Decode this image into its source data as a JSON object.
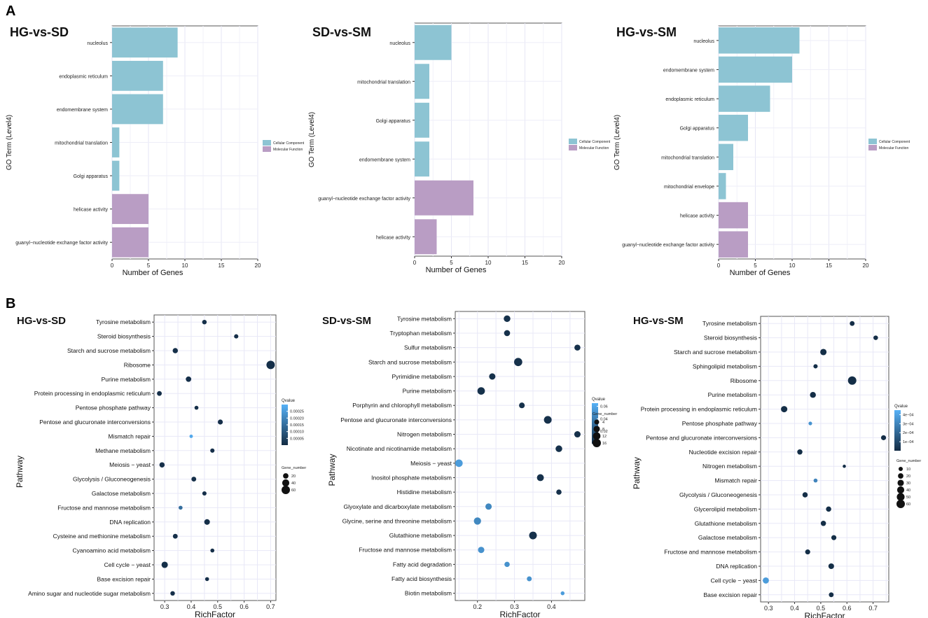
{
  "panel_labels": [
    "A",
    "B"
  ],
  "chart_data": [
    {
      "type": "bar",
      "orientation": "horizontal",
      "title": "HG-vs-SD",
      "xlabel": "Number of Genes",
      "ylabel": "GO Term (Level4)",
      "xlim": [
        0,
        20
      ],
      "xticks": [
        0,
        5,
        10,
        15,
        20
      ],
      "categories": [
        "nucleolus",
        "endoplasmic reticulum",
        "endomembrane system",
        "mitochondrial translation",
        "Golgi apparatus",
        "helicase activity",
        "guanyl−nucleotide exchange factor activity"
      ],
      "values": [
        9,
        7,
        7,
        1,
        1,
        5,
        5
      ],
      "groups": [
        "Cellular Component",
        "Cellular Component",
        "Cellular Component",
        "Cellular Component",
        "Cellular Component",
        "Molecular Function",
        "Molecular Function"
      ],
      "legend": [
        {
          "name": "Cellular Component",
          "color": "#8dc4d3"
        },
        {
          "name": "Molecular Function",
          "color": "#b99dc4"
        }
      ]
    },
    {
      "type": "bar",
      "orientation": "horizontal",
      "title": "SD-vs-SM",
      "xlabel": "Number of Genes",
      "ylabel": "GO Term (Level4)",
      "xlim": [
        0,
        20
      ],
      "xticks": [
        0,
        5,
        10,
        15,
        20
      ],
      "categories": [
        "nucleolus",
        "mitochondrial translation",
        "Golgi apparatus",
        "endomembrane system",
        "guanyl−nucleotide exchange factor activity",
        "helicase activity"
      ],
      "values": [
        5,
        2,
        2,
        2,
        8,
        3
      ],
      "groups": [
        "Cellular Component",
        "Cellular Component",
        "Cellular Component",
        "Cellular Component",
        "Molecular Function",
        "Molecular Function"
      ],
      "legend": [
        {
          "name": "Cellular Component",
          "color": "#8dc4d3"
        },
        {
          "name": "Molecular Function",
          "color": "#b99dc4"
        }
      ]
    },
    {
      "type": "bar",
      "orientation": "horizontal",
      "title": "HG-vs-SM",
      "xlabel": "Number of Genes",
      "ylabel": "GO Term (Level4)",
      "xlim": [
        0,
        20
      ],
      "xticks": [
        0,
        5,
        10,
        15,
        20
      ],
      "categories": [
        "nucleolus",
        "endomembrane system",
        "endoplasmic reticulum",
        "Golgi apparatus",
        "mitochondrial translation",
        "mitochondrial envelope",
        "helicase activity",
        "guanyl−nucleotide exchange factor activity"
      ],
      "values": [
        11,
        10,
        7,
        4,
        2,
        1,
        4,
        4
      ],
      "groups": [
        "Cellular Component",
        "Cellular Component",
        "Cellular Component",
        "Cellular Component",
        "Cellular Component",
        "Cellular Component",
        "Molecular Function",
        "Molecular Function"
      ],
      "legend": [
        {
          "name": "Cellular Component",
          "color": "#8dc4d3"
        },
        {
          "name": "Molecular Function",
          "color": "#b99dc4"
        }
      ]
    },
    {
      "type": "scatter",
      "title": "HG-vs-SD",
      "xlabel": "RichFactor",
      "ylabel": "Pathway",
      "xlim": [
        0.26,
        0.72
      ],
      "xticks": [
        0.3,
        0.4,
        0.5,
        0.6,
        0.7
      ],
      "xtick_labels": [
        "0.3",
        "0.4",
        "0.5",
        "0.6",
        "0.7"
      ],
      "categories": [
        "Tyrosine metabolism",
        "Steroid biosynthesis",
        "Starch and sucrose metabolism",
        "Ribosome",
        "Purine metabolism",
        "Protein processing in endoplasmic reticulum",
        "Pentose phosphate pathway",
        "Pentose and glucuronate interconversions",
        "Mismatch repair",
        "Methane metabolism",
        "Meiosis − yeast",
        "Glycolysis / Gluconeogenesis",
        "Galactose metabolism",
        "Fructose and mannose metabolism",
        "DNA replication",
        "Cysteine and methionine metabolism",
        "Cyanoamino acid metabolism",
        "Cell cycle − yeast",
        "Base excision repair",
        "Amino sugar and nucleotide sugar metabolism"
      ],
      "x": [
        0.45,
        0.57,
        0.34,
        0.7,
        0.39,
        0.28,
        0.42,
        0.51,
        0.4,
        0.48,
        0.29,
        0.41,
        0.45,
        0.36,
        0.46,
        0.34,
        0.48,
        0.3,
        0.46,
        0.33
      ],
      "gene_number": [
        12,
        10,
        18,
        60,
        20,
        14,
        8,
        16,
        5,
        10,
        18,
        14,
        10,
        8,
        22,
        14,
        8,
        30,
        8,
        12
      ],
      "qvalue": [
        1e-05,
        1e-05,
        1e-05,
        1e-05,
        1e-05,
        1e-05,
        1e-05,
        1e-05,
        0.00028,
        1e-05,
        1e-05,
        1e-05,
        1e-05,
        0.00015,
        1e-05,
        1e-05,
        1e-05,
        1e-05,
        1e-05,
        1e-05
      ],
      "legend_qvalue": {
        "title": "Qvalue",
        "ticks": [
          0.00025,
          0.0002,
          0.00015,
          0.0001,
          5e-05
        ],
        "tick_labels": [
          "0.00025",
          "0.00020",
          "0.00015",
          "0.00010",
          "0.00005"
        ],
        "range": [
          0.0,
          0.0003
        ]
      },
      "legend_size": {
        "title": "Gene_number",
        "values": [
          20,
          40,
          60
        ],
        "labels": [
          "20",
          "40",
          "60"
        ]
      }
    },
    {
      "type": "scatter",
      "title": "SD-vs-SM",
      "xlabel": "RichFactor",
      "ylabel": "Pathway",
      "xlim": [
        0.14,
        0.49
      ],
      "xticks": [
        0.2,
        0.3,
        0.4
      ],
      "xtick_labels": [
        "0.2",
        "0.3",
        "0.4"
      ],
      "categories": [
        "Tyrosine metabolism",
        "Tryptophan metabolism",
        "Sulfur metabolism",
        "Starch and sucrose metabolism",
        "Pyrimidine metabolism",
        "Purine metabolism",
        "Porphyrin and chlorophyll metabolism",
        "Pentose and glucuronate interconversions",
        "Nitrogen metabolism",
        "Nicotinate and nicotinamide metabolism",
        "Meiosis − yeast",
        "Inositol phosphate metabolism",
        "Histidine metabolism",
        "Glyoxylate and dicarboxylate metabolism",
        "Glycine, serine and threonine metabolism",
        "Glutathione metabolism",
        "Fructose and mannose metabolism",
        "Fatty acid degradation",
        "Fatty acid biosynthesis",
        "Biotin metabolism"
      ],
      "x": [
        0.28,
        0.28,
        0.47,
        0.31,
        0.24,
        0.21,
        0.32,
        0.39,
        0.47,
        0.42,
        0.15,
        0.37,
        0.42,
        0.23,
        0.2,
        0.35,
        0.21,
        0.28,
        0.34,
        0.43
      ],
      "gene_number": [
        9,
        7,
        7,
        15,
        8,
        12,
        6,
        13,
        8,
        9,
        12,
        10,
        5,
        8,
        11,
        13,
        8,
        5,
        4,
        2
      ],
      "qvalue": [
        0.003,
        0.003,
        0.003,
        0.003,
        0.003,
        0.003,
        0.003,
        0.003,
        0.003,
        0.003,
        0.055,
        0.003,
        0.003,
        0.045,
        0.045,
        0.003,
        0.05,
        0.05,
        0.05,
        0.055
      ],
      "legend_qvalue": {
        "title": "Qvalue",
        "ticks": [
          0.06,
          0.04,
          0.02
        ],
        "tick_labels": [
          "0.06",
          "0.04",
          "0.02"
        ],
        "range": [
          0.0,
          0.065
        ]
      },
      "legend_size": {
        "title": "Gene_number",
        "values": [
          4,
          8,
          12,
          16
        ],
        "labels": [
          "4",
          "8",
          "12",
          "16"
        ]
      }
    },
    {
      "type": "scatter",
      "title": "HG-vs-SM",
      "xlabel": "RichFactor",
      "ylabel": "Pathway",
      "xlim": [
        0.27,
        0.76
      ],
      "xticks": [
        0.3,
        0.4,
        0.5,
        0.6,
        0.7
      ],
      "xtick_labels": [
        "0.3",
        "0.4",
        "0.5",
        "0.6",
        "0.7"
      ],
      "categories": [
        "Tyrosine metabolism",
        "Steroid biosynthesis",
        "Starch and sucrose metabolism",
        "Sphingolipid metabolism",
        "Ribosome",
        "Purine metabolism",
        "Protein processing in endoplasmic reticulum",
        "Pentose phosphate pathway",
        "Pentose and glucuronate interconversions",
        "Nucleotide excision repair",
        "Nitrogen metabolism",
        "Mismatch repair",
        "Glycolysis / Gluconeogenesis",
        "Glycerolipid metabolism",
        "Glutathione metabolism",
        "Galactose metabolism",
        "Fructose and mannose metabolism",
        "DNA replication",
        "Cell cycle − yeast",
        "Base excision repair"
      ],
      "x": [
        0.62,
        0.71,
        0.51,
        0.48,
        0.62,
        0.47,
        0.36,
        0.46,
        0.74,
        0.42,
        0.59,
        0.48,
        0.44,
        0.53,
        0.51,
        0.55,
        0.45,
        0.54,
        0.29,
        0.54
      ],
      "gene_number": [
        14,
        12,
        30,
        10,
        60,
        25,
        30,
        6,
        16,
        18,
        4,
        8,
        18,
        18,
        18,
        16,
        16,
        22,
        28,
        14
      ],
      "qvalue": [
        1e-05,
        1e-05,
        1e-05,
        1e-05,
        1e-05,
        1e-05,
        1e-05,
        0.00035,
        1e-05,
        1e-05,
        1e-05,
        0.0003,
        1e-05,
        1e-05,
        1e-05,
        1e-05,
        1e-05,
        1e-05,
        0.00038,
        1e-05
      ],
      "legend_qvalue": {
        "title": "Qvalue",
        "ticks": [
          0.0004,
          0.0003,
          0.0002,
          0.0001
        ],
        "tick_labels": [
          "4e−04",
          "3e−04",
          "2e−04",
          "1e−04"
        ],
        "range": [
          0.0,
          0.00045
        ]
      },
      "legend_size": {
        "title": "Gene_number",
        "values": [
          10,
          20,
          30,
          40,
          50,
          60
        ],
        "labels": [
          "10",
          "20",
          "30",
          "40",
          "50",
          "60"
        ]
      }
    }
  ]
}
